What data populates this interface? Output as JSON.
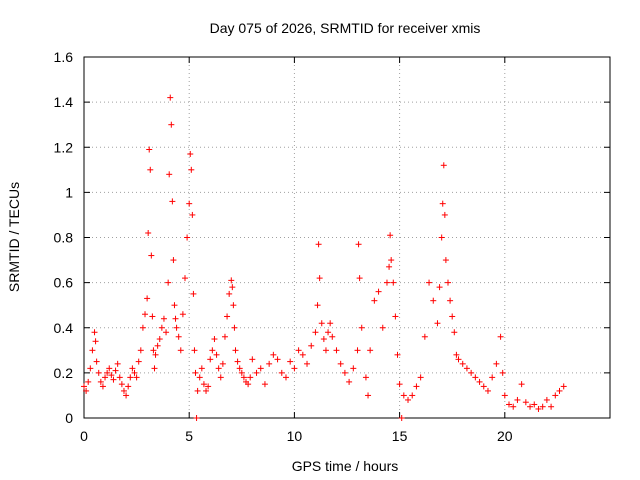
{
  "chart_data": {
    "type": "scatter",
    "title": "Day 075 of 2026, SRMTID for receiver xmis",
    "xlabel": "GPS time / hours",
    "ylabel": "SRMTID / TECUs",
    "xlim": [
      0,
      25
    ],
    "ylim": [
      0,
      1.6
    ],
    "grid": true,
    "marker": "+",
    "series_color": "#ff0000",
    "x_ticks": [
      0,
      5,
      10,
      15,
      20
    ],
    "x_tick_labels": [
      "0",
      "5",
      "10",
      "15",
      "20"
    ],
    "y_ticks": [
      0,
      0.2,
      0.4,
      0.6,
      0.8,
      1.0,
      1.2,
      1.4,
      1.6
    ],
    "y_tick_labels": [
      "0",
      "0.2",
      "0.4",
      "0.6",
      "0.8",
      "1",
      "1.2",
      "1.4",
      "1.6"
    ],
    "series": [
      {
        "name": "SRMTID",
        "x": [
          0.0,
          0.1,
          0.2,
          0.3,
          0.4,
          0.5,
          0.55,
          0.6,
          0.7,
          0.8,
          0.9,
          1.0,
          1.1,
          1.2,
          1.3,
          1.4,
          1.5,
          1.6,
          1.7,
          1.8,
          1.9,
          2.0,
          2.1,
          2.2,
          2.3,
          2.4,
          2.5,
          2.6,
          2.7,
          2.8,
          2.9,
          3.0,
          3.05,
          3.1,
          3.15,
          3.2,
          3.25,
          3.3,
          3.35,
          3.4,
          3.5,
          3.6,
          3.7,
          3.8,
          3.9,
          4.0,
          4.05,
          4.1,
          4.15,
          4.2,
          4.25,
          4.3,
          4.35,
          4.4,
          4.5,
          4.6,
          4.7,
          4.8,
          4.9,
          5.0,
          5.05,
          5.1,
          5.15,
          5.2,
          5.25,
          5.3,
          5.35,
          5.4,
          5.5,
          5.6,
          5.7,
          5.8,
          5.9,
          6.0,
          6.1,
          6.2,
          6.3,
          6.4,
          6.5,
          6.6,
          6.7,
          6.8,
          6.9,
          7.0,
          7.05,
          7.1,
          7.15,
          7.2,
          7.3,
          7.4,
          7.5,
          7.6,
          7.7,
          7.8,
          7.9,
          8.0,
          8.2,
          8.4,
          8.6,
          8.8,
          9.0,
          9.2,
          9.4,
          9.6,
          9.8,
          10.0,
          10.2,
          10.4,
          10.6,
          10.8,
          11.0,
          11.1,
          11.15,
          11.2,
          11.3,
          11.4,
          11.5,
          11.6,
          11.7,
          11.8,
          12.0,
          12.2,
          12.4,
          12.6,
          12.8,
          13.0,
          13.05,
          13.1,
          13.2,
          13.4,
          13.5,
          13.6,
          13.8,
          14.0,
          14.2,
          14.4,
          14.5,
          14.55,
          14.6,
          14.7,
          14.8,
          14.9,
          15.0,
          15.1,
          15.2,
          15.4,
          15.6,
          15.8,
          16.0,
          16.2,
          16.4,
          16.6,
          16.8,
          16.9,
          17.0,
          17.05,
          17.1,
          17.15,
          17.2,
          17.3,
          17.4,
          17.5,
          17.6,
          17.7,
          17.8,
          18.0,
          18.2,
          18.4,
          18.6,
          18.8,
          19.0,
          19.2,
          19.4,
          19.6,
          19.8,
          19.9,
          20.0,
          20.2,
          20.4,
          20.6,
          20.8,
          21.0,
          21.2,
          21.4,
          21.6,
          21.8,
          22.0,
          22.2,
          22.4,
          22.6,
          22.8
        ],
        "y": [
          0.14,
          0.12,
          0.16,
          0.22,
          0.3,
          0.38,
          0.34,
          0.25,
          0.2,
          0.16,
          0.14,
          0.18,
          0.2,
          0.22,
          0.19,
          0.17,
          0.21,
          0.24,
          0.18,
          0.15,
          0.12,
          0.1,
          0.14,
          0.18,
          0.22,
          0.2,
          0.18,
          0.25,
          0.3,
          0.4,
          0.46,
          0.53,
          0.82,
          1.19,
          1.1,
          0.72,
          0.45,
          0.3,
          0.22,
          0.28,
          0.32,
          0.35,
          0.4,
          0.44,
          0.38,
          0.6,
          1.08,
          1.42,
          1.3,
          0.96,
          0.7,
          0.5,
          0.44,
          0.4,
          0.36,
          0.3,
          0.46,
          0.62,
          0.8,
          0.95,
          1.17,
          1.1,
          0.9,
          0.55,
          0.3,
          0.2,
          0.0,
          0.12,
          0.18,
          0.22,
          0.15,
          0.12,
          0.14,
          0.26,
          0.3,
          0.35,
          0.28,
          0.22,
          0.18,
          0.24,
          0.36,
          0.45,
          0.55,
          0.61,
          0.58,
          0.5,
          0.4,
          0.3,
          0.25,
          0.22,
          0.2,
          0.18,
          0.16,
          0.15,
          0.18,
          0.26,
          0.2,
          0.22,
          0.15,
          0.24,
          0.28,
          0.26,
          0.2,
          0.18,
          0.25,
          0.22,
          0.3,
          0.28,
          0.24,
          0.32,
          0.38,
          0.5,
          0.77,
          0.62,
          0.42,
          0.35,
          0.3,
          0.38,
          0.42,
          0.36,
          0.3,
          0.24,
          0.2,
          0.16,
          0.22,
          0.3,
          0.77,
          0.62,
          0.4,
          0.18,
          0.1,
          0.3,
          0.52,
          0.56,
          0.4,
          0.6,
          0.67,
          0.81,
          0.7,
          0.6,
          0.45,
          0.28,
          0.15,
          0.0,
          0.1,
          0.08,
          0.1,
          0.14,
          0.18,
          0.36,
          0.6,
          0.52,
          0.42,
          0.58,
          0.8,
          0.95,
          1.12,
          0.9,
          0.7,
          0.6,
          0.52,
          0.45,
          0.38,
          0.28,
          0.26,
          0.24,
          0.22,
          0.2,
          0.18,
          0.16,
          0.14,
          0.12,
          0.18,
          0.24,
          0.36,
          0.2,
          0.1,
          0.06,
          0.05,
          0.08,
          0.15,
          0.07,
          0.05,
          0.06,
          0.04,
          0.05,
          0.08,
          0.05,
          0.1,
          0.12,
          0.14
        ]
      }
    ]
  }
}
